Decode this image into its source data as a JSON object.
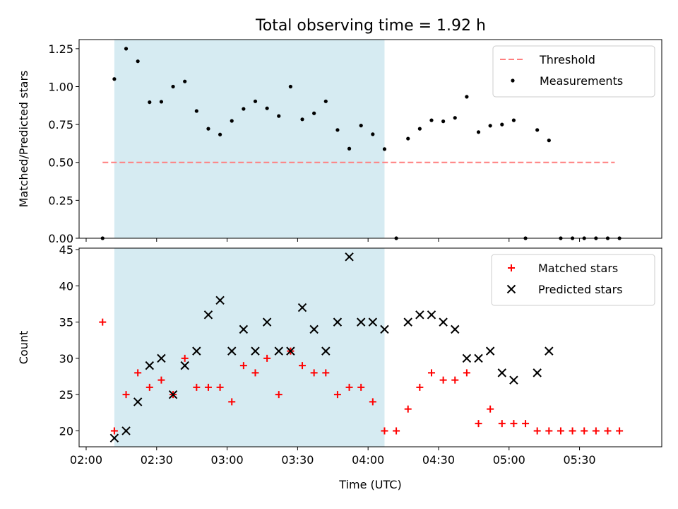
{
  "figure_title": "Total observing time = 1.92 h",
  "chart_data": [
    {
      "type": "scatter",
      "panel": "top",
      "title": "Total observing time = 1.92 h",
      "xlabel": "",
      "ylabel": "Matched/Predicted stars",
      "x_unit": "minutes_since_00:00",
      "xlim": [
        117,
        365
      ],
      "ylim": [
        0,
        1.31
      ],
      "yticks": [
        0.0,
        0.25,
        0.5,
        0.75,
        1.0,
        1.25
      ],
      "ytick_labels": [
        "0.00",
        "0.25",
        "0.50",
        "0.75",
        "1.00",
        "1.25"
      ],
      "xticks": [
        120,
        150,
        180,
        210,
        240,
        270,
        300,
        330
      ],
      "shaded_span": {
        "x_start": 132,
        "x_end": 247,
        "color": "#add8e6"
      },
      "grid": false,
      "legend_position": "top-right",
      "threshold": {
        "name": "Threshold",
        "y": 0.5,
        "x_start": 127,
        "x_end": 345,
        "color": "#ff7f7f",
        "style": "dashed"
      },
      "series": [
        {
          "name": "Measurements",
          "marker": "dot",
          "color": "#000000",
          "points": [
            [
              127,
              0.0
            ],
            [
              132,
              1.05
            ],
            [
              137,
              1.25
            ],
            [
              142,
              1.167
            ],
            [
              147,
              0.897
            ],
            [
              152,
              0.9
            ],
            [
              157,
              1.0
            ],
            [
              162,
              1.034
            ],
            [
              167,
              0.839
            ],
            [
              172,
              0.722
            ],
            [
              177,
              0.684
            ],
            [
              182,
              0.774
            ],
            [
              187,
              0.853
            ],
            [
              192,
              0.903
            ],
            [
              197,
              0.857
            ],
            [
              202,
              0.806
            ],
            [
              207,
              1.0
            ],
            [
              212,
              0.784
            ],
            [
              217,
              0.824
            ],
            [
              222,
              0.903
            ],
            [
              227,
              0.714
            ],
            [
              232,
              0.591
            ],
            [
              237,
              0.743
            ],
            [
              242,
              0.686
            ],
            [
              247,
              0.588
            ],
            [
              252,
              0.0
            ],
            [
              257,
              0.657
            ],
            [
              262,
              0.722
            ],
            [
              267,
              0.778
            ],
            [
              272,
              0.771
            ],
            [
              277,
              0.794
            ],
            [
              282,
              0.933
            ],
            [
              287,
              0.7
            ],
            [
              292,
              0.742
            ],
            [
              297,
              0.75
            ],
            [
              302,
              0.778
            ],
            [
              307,
              0.0
            ],
            [
              312,
              0.714
            ],
            [
              317,
              0.645
            ],
            [
              322,
              0.0
            ],
            [
              327,
              0.0
            ],
            [
              332,
              0.0
            ],
            [
              337,
              0.0
            ],
            [
              342,
              0.0
            ],
            [
              347,
              0.0
            ]
          ]
        }
      ]
    },
    {
      "type": "scatter",
      "panel": "bottom",
      "xlabel": "Time (UTC)",
      "ylabel": "Count",
      "x_unit": "minutes_since_00:00",
      "xlim": [
        117,
        365
      ],
      "ylim": [
        17.8,
        45.2
      ],
      "yticks": [
        20,
        25,
        30,
        35,
        40,
        45
      ],
      "ytick_labels": [
        "20",
        "25",
        "30",
        "35",
        "40",
        "45"
      ],
      "xticks": [
        120,
        150,
        180,
        210,
        240,
        270,
        300,
        330
      ],
      "xtick_labels": [
        "02:00",
        "02:30",
        "03:00",
        "03:30",
        "04:00",
        "04:30",
        "05:00",
        "05:30"
      ],
      "shaded_span": {
        "x_start": 132,
        "x_end": 247,
        "color": "#add8e6"
      },
      "grid": false,
      "legend_position": "top-right",
      "series": [
        {
          "name": "Matched stars",
          "marker": "plus",
          "color": "#ff0000",
          "points": [
            [
              127,
              35
            ],
            [
              132,
              20
            ],
            [
              137,
              25
            ],
            [
              142,
              28
            ],
            [
              147,
              26
            ],
            [
              152,
              27
            ],
            [
              157,
              25
            ],
            [
              162,
              30
            ],
            [
              167,
              26
            ],
            [
              172,
              26
            ],
            [
              177,
              26
            ],
            [
              182,
              24
            ],
            [
              187,
              29
            ],
            [
              192,
              28
            ],
            [
              197,
              30
            ],
            [
              202,
              25
            ],
            [
              207,
              31
            ],
            [
              212,
              29
            ],
            [
              217,
              28
            ],
            [
              222,
              28
            ],
            [
              227,
              25
            ],
            [
              232,
              26
            ],
            [
              237,
              26
            ],
            [
              242,
              24
            ],
            [
              247,
              20
            ],
            [
              252,
              20
            ],
            [
              257,
              23
            ],
            [
              262,
              26
            ],
            [
              267,
              28
            ],
            [
              272,
              27
            ],
            [
              277,
              27
            ],
            [
              282,
              28
            ],
            [
              287,
              21
            ],
            [
              292,
              23
            ],
            [
              297,
              21
            ],
            [
              302,
              21
            ],
            [
              307,
              21
            ],
            [
              312,
              20
            ],
            [
              317,
              20
            ],
            [
              322,
              20
            ],
            [
              327,
              20
            ],
            [
              332,
              20
            ],
            [
              337,
              20
            ],
            [
              342,
              20
            ],
            [
              347,
              20
            ]
          ]
        },
        {
          "name": "Predicted stars",
          "marker": "x",
          "color": "#000000",
          "points": [
            [
              132,
              19
            ],
            [
              137,
              20
            ],
            [
              142,
              24
            ],
            [
              147,
              29
            ],
            [
              152,
              30
            ],
            [
              157,
              25
            ],
            [
              162,
              29
            ],
            [
              167,
              31
            ],
            [
              172,
              36
            ],
            [
              177,
              38
            ],
            [
              182,
              31
            ],
            [
              187,
              34
            ],
            [
              192,
              31
            ],
            [
              197,
              35
            ],
            [
              202,
              31
            ],
            [
              207,
              31
            ],
            [
              212,
              37
            ],
            [
              217,
              34
            ],
            [
              222,
              31
            ],
            [
              227,
              35
            ],
            [
              232,
              44
            ],
            [
              237,
              35
            ],
            [
              242,
              35
            ],
            [
              247,
              34
            ],
            [
              257,
              35
            ],
            [
              262,
              36
            ],
            [
              267,
              36
            ],
            [
              272,
              35
            ],
            [
              277,
              34
            ],
            [
              282,
              30
            ],
            [
              287,
              30
            ],
            [
              292,
              31
            ],
            [
              297,
              28
            ],
            [
              302,
              27
            ],
            [
              312,
              28
            ],
            [
              317,
              31
            ]
          ]
        }
      ]
    }
  ]
}
